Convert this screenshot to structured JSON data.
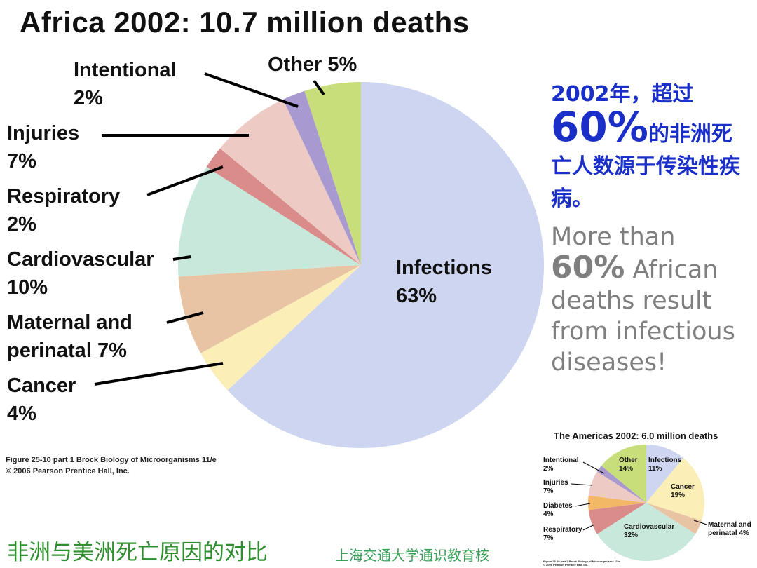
{
  "chart_data": [
    {
      "type": "pie",
      "title": "Africa 2002: 10.7 million deaths",
      "categories": [
        "Infections",
        "Cancer",
        "Maternal and perinatal",
        "Cardiovascular",
        "Respiratory",
        "Injuries",
        "Intentional",
        "Other"
      ],
      "values": [
        63,
        4,
        7,
        10,
        2,
        7,
        2,
        5
      ],
      "value_labels": [
        "63%",
        "4%",
        "7%",
        "10%",
        "2%",
        "7%",
        "2%",
        "5%"
      ],
      "colors": [
        "#cdd5f0",
        "#fbeeb7",
        "#e8c4a4",
        "#c9e8dc",
        "#d98c89",
        "#edcac3",
        "#a89ad0",
        "#c8de7a"
      ],
      "caption": [
        "Figure 25-10 part 1 Brock Biology of Microorganisms 11/e",
        "© 2006 Pearson Prentice Hall, Inc."
      ]
    },
    {
      "type": "pie",
      "title": "The Americas 2002: 6.0 million deaths",
      "categories": [
        "Infections",
        "Cancer",
        "Maternal and perinatal",
        "Cardiovascular",
        "Respiratory",
        "Diabetes",
        "Injuries",
        "Intentional",
        "Other"
      ],
      "values": [
        11,
        19,
        4,
        32,
        7,
        4,
        7,
        2,
        14
      ],
      "value_labels": [
        "11%",
        "19%",
        "4%",
        "32%",
        "7%",
        "4%",
        "7%",
        "2%",
        "14%"
      ],
      "colors": [
        "#cdd5f0",
        "#fbeeb7",
        "#e8c4a4",
        "#c9e8dc",
        "#d98c89",
        "#f2b866",
        "#edcac3",
        "#a89ad0",
        "#c8de7a"
      ],
      "caption": [
        "Figure 25-10 part 2 Brock Biology of Microorganisms 11/e",
        "© 2006 Pearson Prentice Hall, Inc."
      ]
    }
  ],
  "note_zh": [
    "2002年，超过",
    "60%",
    "的非洲死亡人数源于传染性疾病。"
  ],
  "note_en": [
    "More than",
    "60%",
    "African deaths result from infectious diseases!"
  ],
  "footer": {
    "title": "非洲与美洲死亡原因的对比",
    "source": "上海交通大学通识教育核"
  }
}
